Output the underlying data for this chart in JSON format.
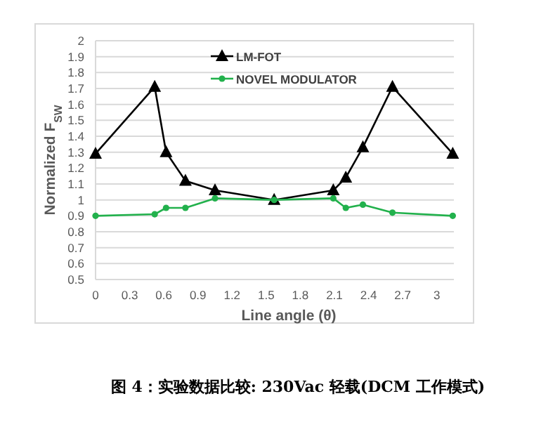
{
  "chart_data": {
    "type": "line",
    "xlabel": "Line angle (θ)",
    "ylabel": "Normalized  F$_{SW}$",
    "x": [
      0,
      0.52,
      0.62,
      0.79,
      1.05,
      1.57,
      2.09,
      2.2,
      2.35,
      2.61,
      3.14
    ],
    "series": [
      {
        "name": "LM-FOT",
        "color": "#000000",
        "marker": "triangle",
        "values": [
          1.29,
          1.71,
          1.3,
          1.12,
          1.06,
          1.0,
          1.06,
          1.14,
          1.33,
          1.71,
          1.29
        ]
      },
      {
        "name": "NOVEL MODULATOR",
        "color": "#22b14c",
        "marker": "circle",
        "values": [
          0.9,
          0.91,
          0.95,
          0.95,
          1.01,
          1.0,
          1.01,
          0.95,
          0.97,
          0.92,
          0.9
        ]
      }
    ],
    "xlim": [
      0,
      3.15
    ],
    "ylim": [
      0.5,
      2
    ],
    "xticks": [
      0,
      0.3,
      0.6,
      0.9,
      1.2,
      1.5,
      1.8,
      2.1,
      2.4,
      2.7,
      3
    ],
    "yticks": [
      0.5,
      0.6,
      0.7,
      0.8,
      0.9,
      1,
      1.1,
      1.2,
      1.3,
      1.4,
      1.5,
      1.6,
      1.7,
      1.8,
      1.9,
      2
    ],
    "grid": "y",
    "legend": "top",
    "line_style": "solid",
    "annotations": [
      "图 4：实验数据比较: 230Vac 轻载(DCM 工作模式)"
    ]
  }
}
